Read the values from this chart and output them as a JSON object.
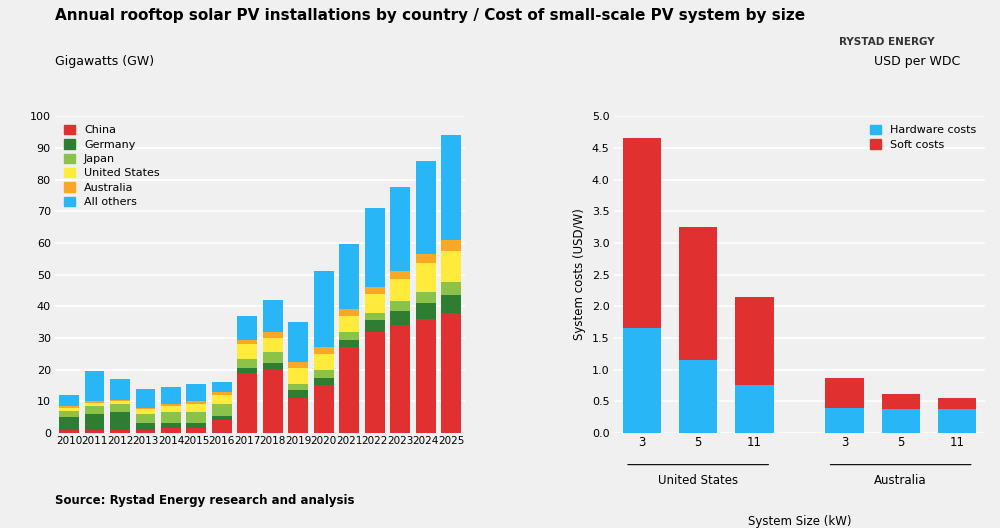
{
  "title": "Annual rooftop solar PV installations by country / Cost of small-scale PV system by size",
  "subtitle_left": "Gigawatts (GW)",
  "subtitle_right": "USD per WDC",
  "source": "Source: Rystad Energy research and analysis",
  "left_chart": {
    "years": [
      2010,
      2011,
      2012,
      2013,
      2014,
      2015,
      2016,
      2017,
      2018,
      2019,
      2020,
      2021,
      2022,
      2023,
      2024,
      2025
    ],
    "China": [
      1.0,
      1.0,
      1.0,
      1.0,
      1.5,
      1.5,
      4.0,
      19.0,
      20.0,
      11.0,
      15.0,
      27.0,
      32.0,
      34.0,
      36.0,
      38.0
    ],
    "Germany": [
      4.0,
      5.0,
      5.5,
      2.0,
      1.5,
      1.5,
      1.5,
      1.5,
      2.0,
      2.5,
      2.5,
      2.5,
      3.5,
      4.5,
      5.0,
      5.5
    ],
    "Japan": [
      2.0,
      2.5,
      2.5,
      3.0,
      3.5,
      3.5,
      3.5,
      3.0,
      3.5,
      2.0,
      2.5,
      2.5,
      2.5,
      3.0,
      3.5,
      4.0
    ],
    "United States": [
      1.0,
      1.0,
      1.0,
      1.5,
      2.0,
      2.5,
      3.0,
      4.5,
      4.5,
      5.0,
      5.0,
      5.0,
      6.0,
      7.0,
      9.0,
      10.0
    ],
    "Australia": [
      0.5,
      0.5,
      0.5,
      0.5,
      0.5,
      1.0,
      1.0,
      1.5,
      2.0,
      2.0,
      2.0,
      2.0,
      2.0,
      2.5,
      3.0,
      3.5
    ],
    "All others": [
      3.5,
      9.5,
      6.5,
      6.0,
      5.5,
      5.5,
      3.0,
      7.5,
      10.0,
      12.5,
      24.0,
      20.5,
      25.0,
      26.5,
      29.5,
      33.0
    ]
  },
  "left_ylim": [
    0,
    100
  ],
  "left_yticks": [
    0,
    10,
    20,
    30,
    40,
    50,
    60,
    70,
    80,
    90,
    100
  ],
  "colors": {
    "China": "#e03030",
    "Germany": "#2e7d32",
    "Japan": "#8bc34a",
    "United States": "#ffeb3b",
    "Australia": "#f9a825",
    "All others": "#29b6f6"
  },
  "right_chart": {
    "categories": [
      "3",
      "5",
      "11",
      "3",
      "5",
      "11"
    ],
    "country_labels": [
      "United States",
      "Australia"
    ],
    "hardware": [
      1.65,
      1.15,
      0.75,
      0.4,
      0.38,
      0.38
    ],
    "soft": [
      3.0,
      2.1,
      1.4,
      0.46,
      0.24,
      0.17
    ],
    "hardware_color": "#29b6f6",
    "soft_color": "#e03030"
  },
  "right_ylabel": "System costs (USD/W)",
  "right_xlabel": "System Size (kW)",
  "right_ylim": [
    0,
    5.0
  ],
  "right_yticks": [
    0.0,
    0.5,
    1.0,
    1.5,
    2.0,
    2.5,
    3.0,
    3.5,
    4.0,
    4.5,
    5.0
  ],
  "bg_color": "#f0f0f0"
}
